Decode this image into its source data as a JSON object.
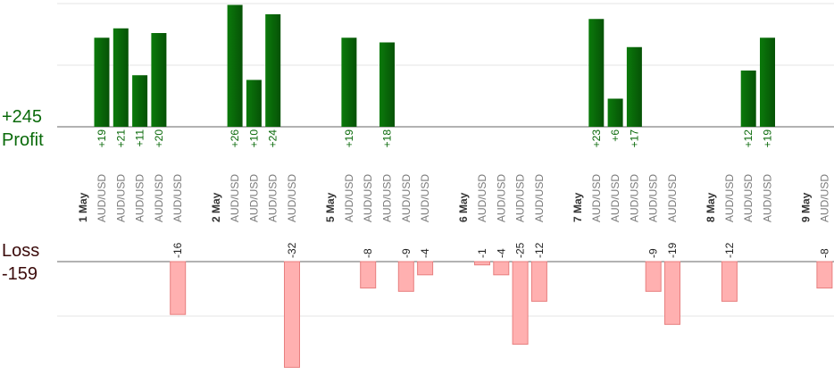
{
  "chart_data": {
    "type": "bar",
    "profit_total": "+245",
    "profit_label": "Profit",
    "loss_label": "Loss",
    "loss_total": "-159",
    "profit_color": "#0a6a0a",
    "loss_color": "#ffb0b0",
    "items": [
      {
        "date": "1 May",
        "pair": "AUD/USD",
        "value": 19
      },
      {
        "pair": "AUD/USD",
        "value": 21
      },
      {
        "pair": "AUD/USD",
        "value": 11
      },
      {
        "pair": "AUD/USD",
        "value": 20
      },
      {
        "pair": "AUD/USD",
        "value": -16
      },
      {
        "pair": null,
        "value": null
      },
      {
        "pair": null,
        "value": null
      },
      {
        "date": "2 May",
        "pair": "AUD/USD",
        "value": 26
      },
      {
        "pair": "AUD/USD",
        "value": 10
      },
      {
        "pair": "AUD/USD",
        "value": 24
      },
      {
        "pair": "AUD/USD",
        "value": -32
      },
      {
        "pair": null,
        "value": null
      },
      {
        "pair": null,
        "value": null
      },
      {
        "date": "5 May",
        "pair": "AUD/USD",
        "value": 19
      },
      {
        "pair": "AUD/USD",
        "value": -8
      },
      {
        "pair": "AUD/USD",
        "value": 18
      },
      {
        "pair": "AUD/USD",
        "value": -9
      },
      {
        "pair": "AUD/USD",
        "value": -4
      },
      {
        "pair": null,
        "value": null
      },
      {
        "pair": null,
        "value": null
      },
      {
        "date": "6 May",
        "pair": "AUD/USD",
        "value": -1
      },
      {
        "pair": "AUD/USD",
        "value": -4
      },
      {
        "pair": "AUD/USD",
        "value": -25
      },
      {
        "pair": "AUD/USD",
        "value": -12
      },
      {
        "pair": null,
        "value": null
      },
      {
        "pair": null,
        "value": null
      },
      {
        "date": "7 May",
        "pair": "AUD/USD",
        "value": 23
      },
      {
        "pair": "AUD/USD",
        "value": 6
      },
      {
        "pair": "AUD/USD",
        "value": 17
      },
      {
        "pair": "AUD/USD",
        "value": -9
      },
      {
        "pair": "AUD/USD",
        "value": -19
      },
      {
        "pair": null,
        "value": null
      },
      {
        "pair": null,
        "value": null
      },
      {
        "date": "8 May",
        "pair": "AUD/USD",
        "value": -12
      },
      {
        "pair": "AUD/USD",
        "value": 12
      },
      {
        "pair": "AUD/USD",
        "value": 19
      },
      {
        "pair": null,
        "value": null
      },
      {
        "pair": null,
        "value": null
      },
      {
        "date": "9 May",
        "pair": "AUD/USD",
        "value": -8
      }
    ]
  }
}
